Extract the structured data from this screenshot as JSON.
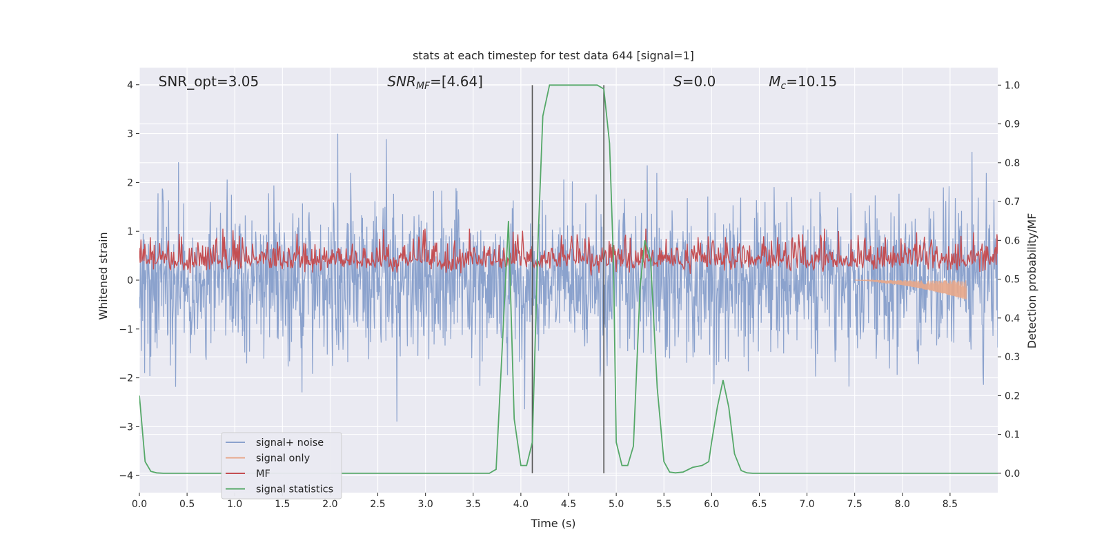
{
  "chart_data": {
    "type": "line",
    "title": "stats at each timestep for test data 644 [signal=1]",
    "xlabel": "Time (s)",
    "ylabel": "Whitened strain",
    "ylabel_right": "Detection probability/MF",
    "xlim": [
      0,
      9.0
    ],
    "ylim": [
      -4.35,
      4.35
    ],
    "ylim_right": [
      -0.05,
      1.045
    ],
    "xticks": [
      0.0,
      0.5,
      1.0,
      1.5,
      2.0,
      2.5,
      3.0,
      3.5,
      4.0,
      4.5,
      5.0,
      5.5,
      6.0,
      6.5,
      7.0,
      7.5,
      8.0,
      8.5
    ],
    "xtick_labels": [
      "0.0",
      "0.5",
      "1.0",
      "1.5",
      "2.0",
      "2.5",
      "3.0",
      "3.5",
      "4.0",
      "4.5",
      "5.0",
      "5.5",
      "6.0",
      "6.5",
      "7.0",
      "7.5",
      "8.0",
      "8.5"
    ],
    "yticks": [
      -4,
      -3,
      -2,
      -1,
      0,
      1,
      2,
      3,
      4
    ],
    "ytick_labels": [
      "−4",
      "−3",
      "−2",
      "−1",
      "0",
      "1",
      "2",
      "3",
      "4"
    ],
    "yticks_right": [
      0.0,
      0.1,
      0.2,
      0.3,
      0.4,
      0.5,
      0.6,
      0.7,
      0.8,
      0.9,
      1.0
    ],
    "ytick_labels_right": [
      "0.0",
      "0.1",
      "0.2",
      "0.3",
      "0.4",
      "0.5",
      "0.6",
      "0.7",
      "0.8",
      "0.9",
      "1.0"
    ],
    "grid": true,
    "legend_position": "lower-left",
    "annotations": [
      {
        "text": "SNR_opt=3.05",
        "x": 0.2,
        "y": 4.0
      },
      {
        "text": "SNR_MF=[4.64]",
        "x": 2.6,
        "y": 4.0
      },
      {
        "text": "S=0.0",
        "x": 5.6,
        "y": 4.0
      },
      {
        "text": "M_c=10.15",
        "x": 6.6,
        "y": 4.0
      }
    ],
    "vlines": [
      {
        "x": 4.12,
        "y_range": [
          0.0,
          1.0
        ]
      },
      {
        "x": 4.87,
        "y_range": [
          0.0,
          1.0
        ]
      }
    ],
    "series": [
      {
        "name": "signal+ noise",
        "color": "#8ba2cd",
        "axis": "left",
        "kind": "noise",
        "samples_per_second": 200,
        "sigma": 0.8,
        "envelope": [
          -4.0,
          4.0
        ]
      },
      {
        "name": "signal only",
        "color": "#e8a78a",
        "axis": "left",
        "kind": "chirp",
        "x_range": [
          7.5,
          8.67
        ],
        "amplitude_end": 0.4
      },
      {
        "name": "MF",
        "color": "#c44e52",
        "axis": "right",
        "kind": "mf",
        "baseline": 0.55,
        "spread": 0.03,
        "peak": 0.63
      },
      {
        "name": "signal statistics",
        "color": "#55a868",
        "axis": "right",
        "kind": "line",
        "x": [
          0.0,
          0.06,
          0.12,
          0.18,
          0.25,
          0.4,
          1.0,
          1.5,
          2.0,
          2.5,
          3.0,
          3.5,
          3.67,
          3.74,
          3.8,
          3.87,
          3.93,
          4.0,
          4.06,
          4.12,
          4.18,
          4.23,
          4.3,
          4.4,
          4.6,
          4.8,
          4.87,
          4.93,
          4.97,
          5.0,
          5.06,
          5.12,
          5.18,
          5.25,
          5.3,
          5.36,
          5.43,
          5.5,
          5.56,
          5.62,
          5.7,
          5.8,
          5.9,
          5.97,
          6.0,
          6.06,
          6.12,
          6.18,
          6.24,
          6.31,
          6.37,
          6.43,
          6.5,
          7.0,
          7.5,
          8.0,
          8.5,
          9.0
        ],
        "y": [
          0.2,
          0.03,
          0.005,
          0.001,
          0.0,
          0.0,
          0.0,
          0.0,
          0.0,
          0.0,
          0.0,
          0.0,
          0.0,
          0.01,
          0.3,
          0.65,
          0.14,
          0.02,
          0.02,
          0.08,
          0.6,
          0.92,
          1.0,
          1.0,
          1.0,
          1.0,
          0.99,
          0.85,
          0.55,
          0.08,
          0.02,
          0.02,
          0.07,
          0.48,
          0.6,
          0.55,
          0.22,
          0.03,
          0.003,
          0.001,
          0.003,
          0.015,
          0.02,
          0.03,
          0.08,
          0.17,
          0.24,
          0.17,
          0.05,
          0.007,
          0.001,
          0.0,
          0.0,
          0.0,
          0.0,
          0.0,
          0.0,
          0.0
        ]
      }
    ]
  }
}
